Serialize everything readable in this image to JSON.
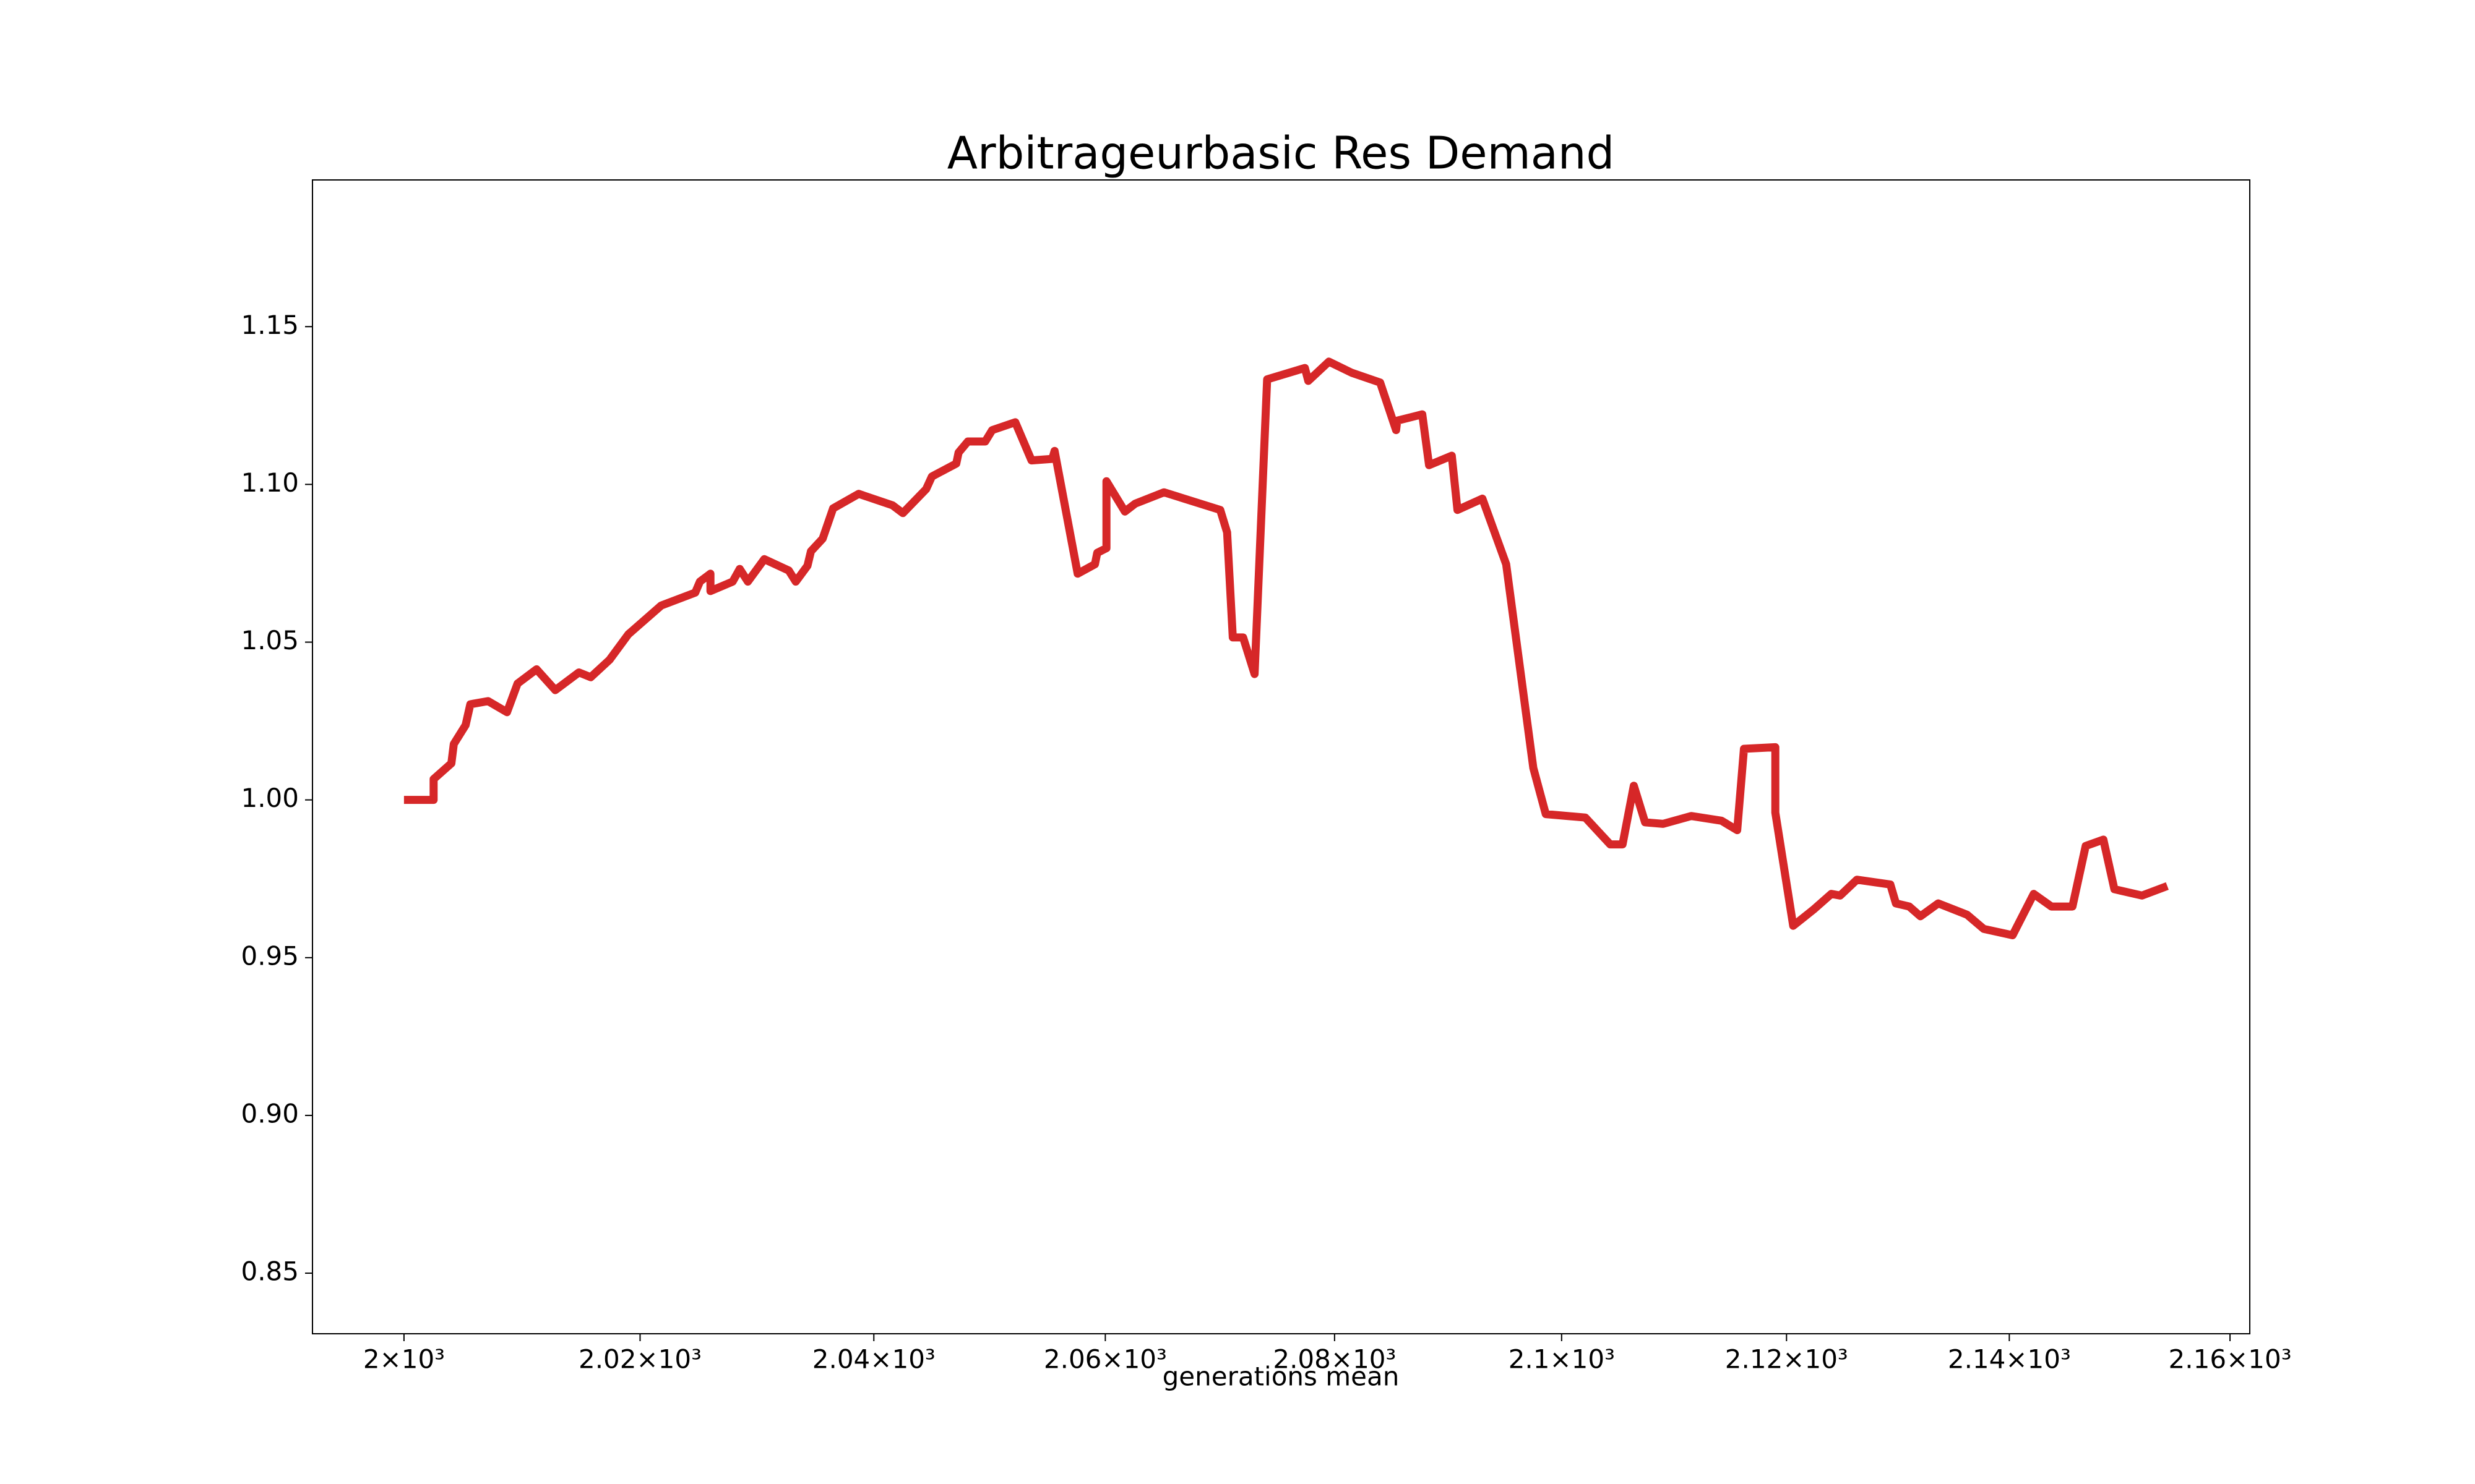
{
  "chart_data": {
    "type": "line",
    "title": "Arbitrageurbasic Res Demand",
    "x_label": "generations mean",
    "xscale": "log",
    "xlim": [
      1992.3,
      2161.8
    ],
    "ylim": [
      0.8308,
      1.1965
    ],
    "xticks": [
      {
        "value": 2000,
        "label": "2×10³"
      },
      {
        "value": 2020,
        "label": "2.02×10³"
      },
      {
        "value": 2040,
        "label": "2.04×10³"
      },
      {
        "value": 2060,
        "label": "2.06×10³"
      },
      {
        "value": 2080,
        "label": "2.08×10³"
      },
      {
        "value": 2100,
        "label": "2.1×10³"
      },
      {
        "value": 2120,
        "label": "2.12×10³"
      },
      {
        "value": 2140,
        "label": "2.14×10³"
      },
      {
        "value": 2160,
        "label": "2.16×10³"
      }
    ],
    "yticks": [
      {
        "value": 0.85,
        "label": "0.85"
      },
      {
        "value": 0.9,
        "label": "0.90"
      },
      {
        "value": 0.95,
        "label": "0.95"
      },
      {
        "value": 1.0,
        "label": "1.00"
      },
      {
        "value": 1.05,
        "label": "1.05"
      },
      {
        "value": 1.1,
        "label": "1.10"
      },
      {
        "value": 1.15,
        "label": "1.15"
      }
    ],
    "x": [
      2000,
      2002.5,
      2002.5,
      2004.0,
      2004.2,
      2005.2,
      2005.6,
      2007.1,
      2008.7,
      2009.6,
      2011.2,
      2012.8,
      2014.8,
      2015.8,
      2017.4,
      2019.0,
      2021.8,
      2024.7,
      2025.1,
      2026.0,
      2026.0,
      2027.9,
      2028.5,
      2029.2,
      2030.6,
      2032.7,
      2033.3,
      2034.3,
      2034.6,
      2035.6,
      2036.5,
      2038.7,
      2041.6,
      2042.5,
      2044.5,
      2045.0,
      2047.1,
      2047.3,
      2048.1,
      2049.6,
      2050.2,
      2052.2,
      2053.6,
      2055.4,
      2055.6,
      2057.6,
      2059.1,
      2059.3,
      2060.1,
      2060.1,
      2061.7,
      2062.6,
      2065.1,
      2070.0,
      2070.6,
      2071.1,
      2072.0,
      2073.0,
      2074.1,
      2077.4,
      2077.7,
      2079.5,
      2081.5,
      2084.0,
      2085.4,
      2085.5,
      2087.7,
      2088.3,
      2090.3,
      2090.8,
      2093.0,
      2095.1,
      2097.5,
      2098.6,
      2102.1,
      2104.3,
      2105.4,
      2106.4,
      2107.4,
      2109.0,
      2111.5,
      2114.2,
      2115.6,
      2116.2,
      2119.0,
      2119.0,
      2120.6,
      2122.4,
      2124.0,
      2124.8,
      2126.3,
      2129.3,
      2129.8,
      2131.0,
      2132.0,
      2133.6,
      2136.2,
      2137.7,
      2140.3,
      2142.2,
      2143.8,
      2145.7,
      2146.9,
      2148.5,
      2149.5,
      2152.0,
      2154.3
    ],
    "series": [
      {
        "color": "#d62728",
        "values": [
          1.0,
          1.0,
          1.0066,
          1.0116,
          1.0177,
          1.0237,
          1.0303,
          1.0313,
          1.0278,
          1.0369,
          1.0414,
          1.0348,
          1.0404,
          1.0389,
          1.0444,
          1.0525,
          1.0616,
          1.0657,
          1.0692,
          1.0717,
          1.0662,
          1.0692,
          1.0732,
          1.0692,
          1.0763,
          1.0727,
          1.0692,
          1.0742,
          1.0788,
          1.0828,
          1.0924,
          1.097,
          1.0934,
          1.0909,
          1.0985,
          1.1025,
          1.1066,
          1.1101,
          1.1136,
          1.1136,
          1.1172,
          1.1197,
          1.1076,
          1.1081,
          1.1106,
          1.0717,
          1.0747,
          1.0783,
          1.0798,
          1.101,
          1.0914,
          1.0939,
          1.0975,
          1.0919,
          1.0848,
          1.0515,
          1.0515,
          1.0399,
          1.1333,
          1.1369,
          1.1328,
          1.1389,
          1.1354,
          1.1323,
          1.1172,
          1.1202,
          1.1222,
          1.1061,
          1.1091,
          1.0919,
          1.0955,
          1.0747,
          1.0101,
          0.9955,
          0.9944,
          0.9859,
          0.9859,
          1.0045,
          0.9929,
          0.9924,
          0.9949,
          0.9934,
          0.9904,
          1.0162,
          1.0167,
          0.996,
          0.9601,
          0.9652,
          0.9702,
          0.9697,
          0.9747,
          0.9732,
          0.9672,
          0.9662,
          0.9631,
          0.9672,
          0.9636,
          0.9591,
          0.9571,
          0.9702,
          0.9662,
          0.9662,
          0.9854,
          0.9874,
          0.9717,
          0.9697,
          0.9727
        ]
      }
    ]
  }
}
